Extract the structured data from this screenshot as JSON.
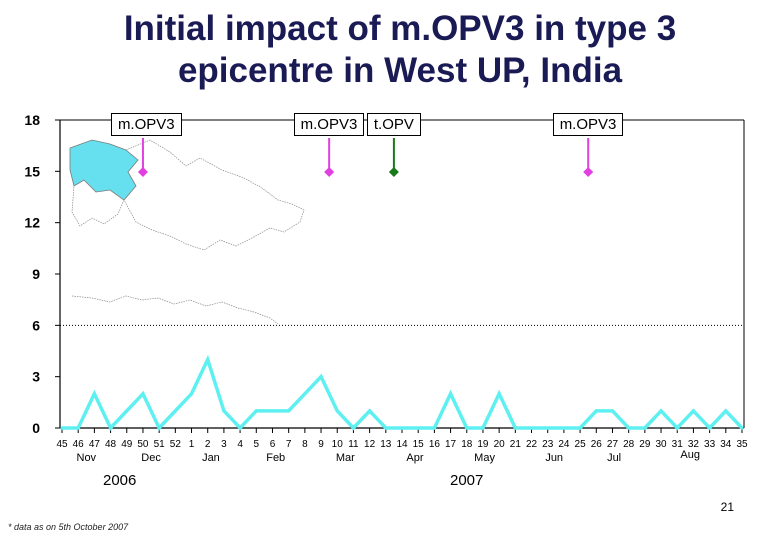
{
  "title_line1": "Initial impact of m.OPV3 in type 3",
  "title_line2": "epicentre in West UP, India",
  "chart_data": {
    "type": "line",
    "ylim": [
      0,
      18
    ],
    "yticks": [
      "0",
      "3",
      "6",
      "9",
      "12",
      "15",
      "18"
    ],
    "threshold": 6,
    "x": [
      "45",
      "46",
      "47",
      "48",
      "49",
      "50",
      "51",
      "52",
      "1",
      "2",
      "3",
      "4",
      "5",
      "6",
      "7",
      "8",
      "9",
      "10",
      "11",
      "12",
      "13",
      "14",
      "15",
      "16",
      "17",
      "18",
      "19",
      "20",
      "21",
      "22",
      "23",
      "24",
      "25",
      "26",
      "27",
      "28",
      "29",
      "30",
      "31",
      "32",
      "33",
      "34",
      "35"
    ],
    "series": [
      {
        "name": "cases",
        "color": "#5ef0f0",
        "values": [
          0,
          0,
          2,
          0,
          1,
          2,
          0,
          1,
          2,
          4,
          1,
          0,
          1,
          1,
          1,
          2,
          3,
          1,
          0,
          1,
          0,
          0,
          0,
          0,
          2,
          0,
          0,
          2,
          0,
          0,
          0,
          0,
          0,
          1,
          1,
          0,
          0,
          1,
          0,
          1,
          0,
          1,
          0
        ]
      }
    ],
    "months": [
      {
        "label": "Nov",
        "at": 1.5
      },
      {
        "label": "Dec",
        "at": 5.5
      },
      {
        "label": "Jan",
        "at": 9.2
      },
      {
        "label": "Feb",
        "at": 13.2
      },
      {
        "label": "Mar",
        "at": 17.5
      },
      {
        "label": "Apr",
        "at": 21.8
      },
      {
        "label": "May",
        "at": 26.1
      },
      {
        "label": "Jun",
        "at": 30.4
      },
      {
        "label": "Jul",
        "at": 34.1
      },
      {
        "label": "Aug",
        "at": 38.8
      }
    ],
    "years": [
      "2006",
      "2007"
    ],
    "annotations": [
      {
        "label": "m.OPV3",
        "at": 5.0,
        "color": "#e040e0"
      },
      {
        "label": "m.OPV3",
        "at": 16.5,
        "color": "#e040e0"
      },
      {
        "label": "t.OPV",
        "at": 20.5,
        "color": "#1a7a1a"
      },
      {
        "label": "m.OPV3",
        "at": 32.5,
        "color": "#e040e0"
      }
    ]
  },
  "page_number": "21",
  "footnote": "* data as on 5th October 2007"
}
